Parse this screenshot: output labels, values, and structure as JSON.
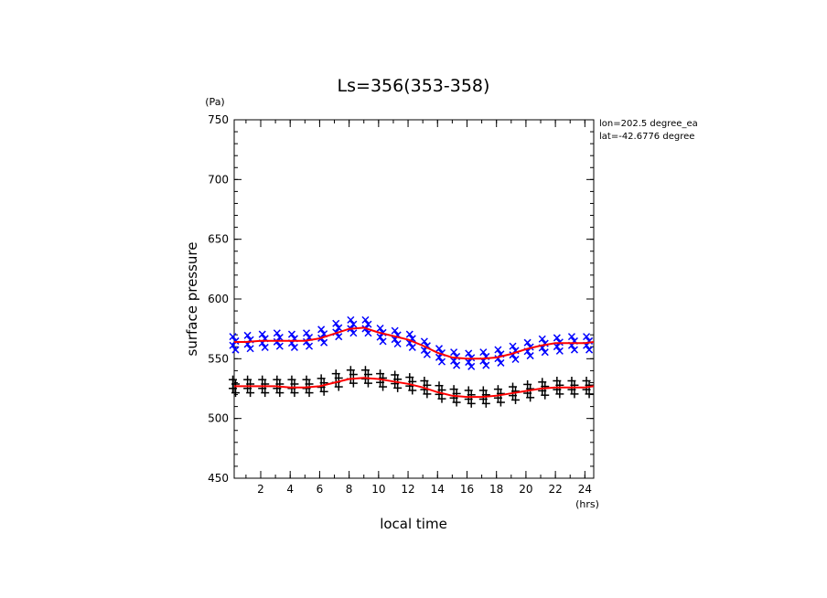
{
  "chart_data": {
    "type": "scatter",
    "title": "Ls=356(353-358)",
    "xlabel": "local time",
    "ylabel": "surface pressure",
    "x_unit": "(hrs)",
    "y_unit": "(Pa)",
    "xlim": [
      0.2,
      24.6
    ],
    "ylim": [
      450,
      750
    ],
    "x_ticks": [
      2,
      4,
      6,
      8,
      10,
      12,
      14,
      16,
      18,
      20,
      22,
      24
    ],
    "y_ticks": [
      450,
      500,
      550,
      600,
      650,
      700,
      750
    ],
    "annotations": [
      "lon=202.5 degree_ea",
      "lat=-42.6776 degree"
    ],
    "series": [
      {
        "marker": "x",
        "color": "#0000ff",
        "x": [
          0.2,
          1.2,
          2.2,
          3.2,
          4.2,
          5.2,
          6.2,
          7.2,
          8.2,
          9.2,
          10.2,
          11.2,
          12.2,
          13.2,
          14.2,
          15.2,
          16.2,
          17.2,
          18.2,
          19.2,
          20.2,
          21.2,
          22.2,
          23.2,
          24.2
        ],
        "y": [
          563,
          564,
          565,
          566,
          565,
          566,
          569,
          574,
          577,
          577,
          570,
          568,
          565,
          559,
          553,
          550,
          549,
          550,
          552,
          555,
          558,
          561,
          562,
          563,
          563
        ]
      },
      {
        "marker": "+",
        "color": "#000000",
        "x": [
          0.2,
          1.2,
          2.2,
          3.2,
          4.2,
          5.2,
          6.2,
          7.2,
          8.2,
          9.2,
          10.2,
          11.2,
          12.2,
          13.2,
          14.2,
          15.2,
          16.2,
          17.2,
          18.2,
          19.2,
          20.2,
          21.2,
          22.2,
          23.2,
          24.2
        ],
        "y": [
          527,
          527,
          527,
          527,
          527,
          527,
          528,
          532,
          535,
          535,
          532,
          531,
          529,
          526,
          522,
          519,
          518,
          518,
          519,
          521,
          523,
          525,
          526,
          526,
          526
        ]
      },
      {
        "marker": "line",
        "color": "#ff0000",
        "x": [
          0.2,
          1,
          2,
          3,
          4,
          5,
          6,
          7,
          8,
          9,
          10,
          11,
          12,
          13,
          14,
          15,
          16,
          17,
          18,
          19,
          20,
          21,
          22,
          23,
          24,
          24.6
        ],
        "y": [
          564,
          564,
          565,
          565,
          565,
          565,
          567,
          571,
          575,
          576,
          572,
          569,
          566,
          561,
          555,
          551,
          550,
          550,
          551,
          554,
          558,
          561,
          563,
          563,
          563,
          564
        ]
      },
      {
        "marker": "line",
        "color": "#ff0000",
        "x": [
          0.2,
          1,
          2,
          3,
          4,
          5,
          6,
          7,
          8,
          9,
          10,
          11,
          12,
          13,
          14,
          15,
          16,
          17,
          18,
          19,
          20,
          21,
          22,
          23,
          24,
          24.6
        ],
        "y": [
          527,
          527,
          527,
          527,
          526,
          526,
          527,
          530,
          533,
          534,
          533,
          531,
          529,
          526,
          522,
          519,
          518,
          518,
          519,
          521,
          523,
          525,
          526,
          526,
          526,
          527
        ]
      }
    ]
  }
}
